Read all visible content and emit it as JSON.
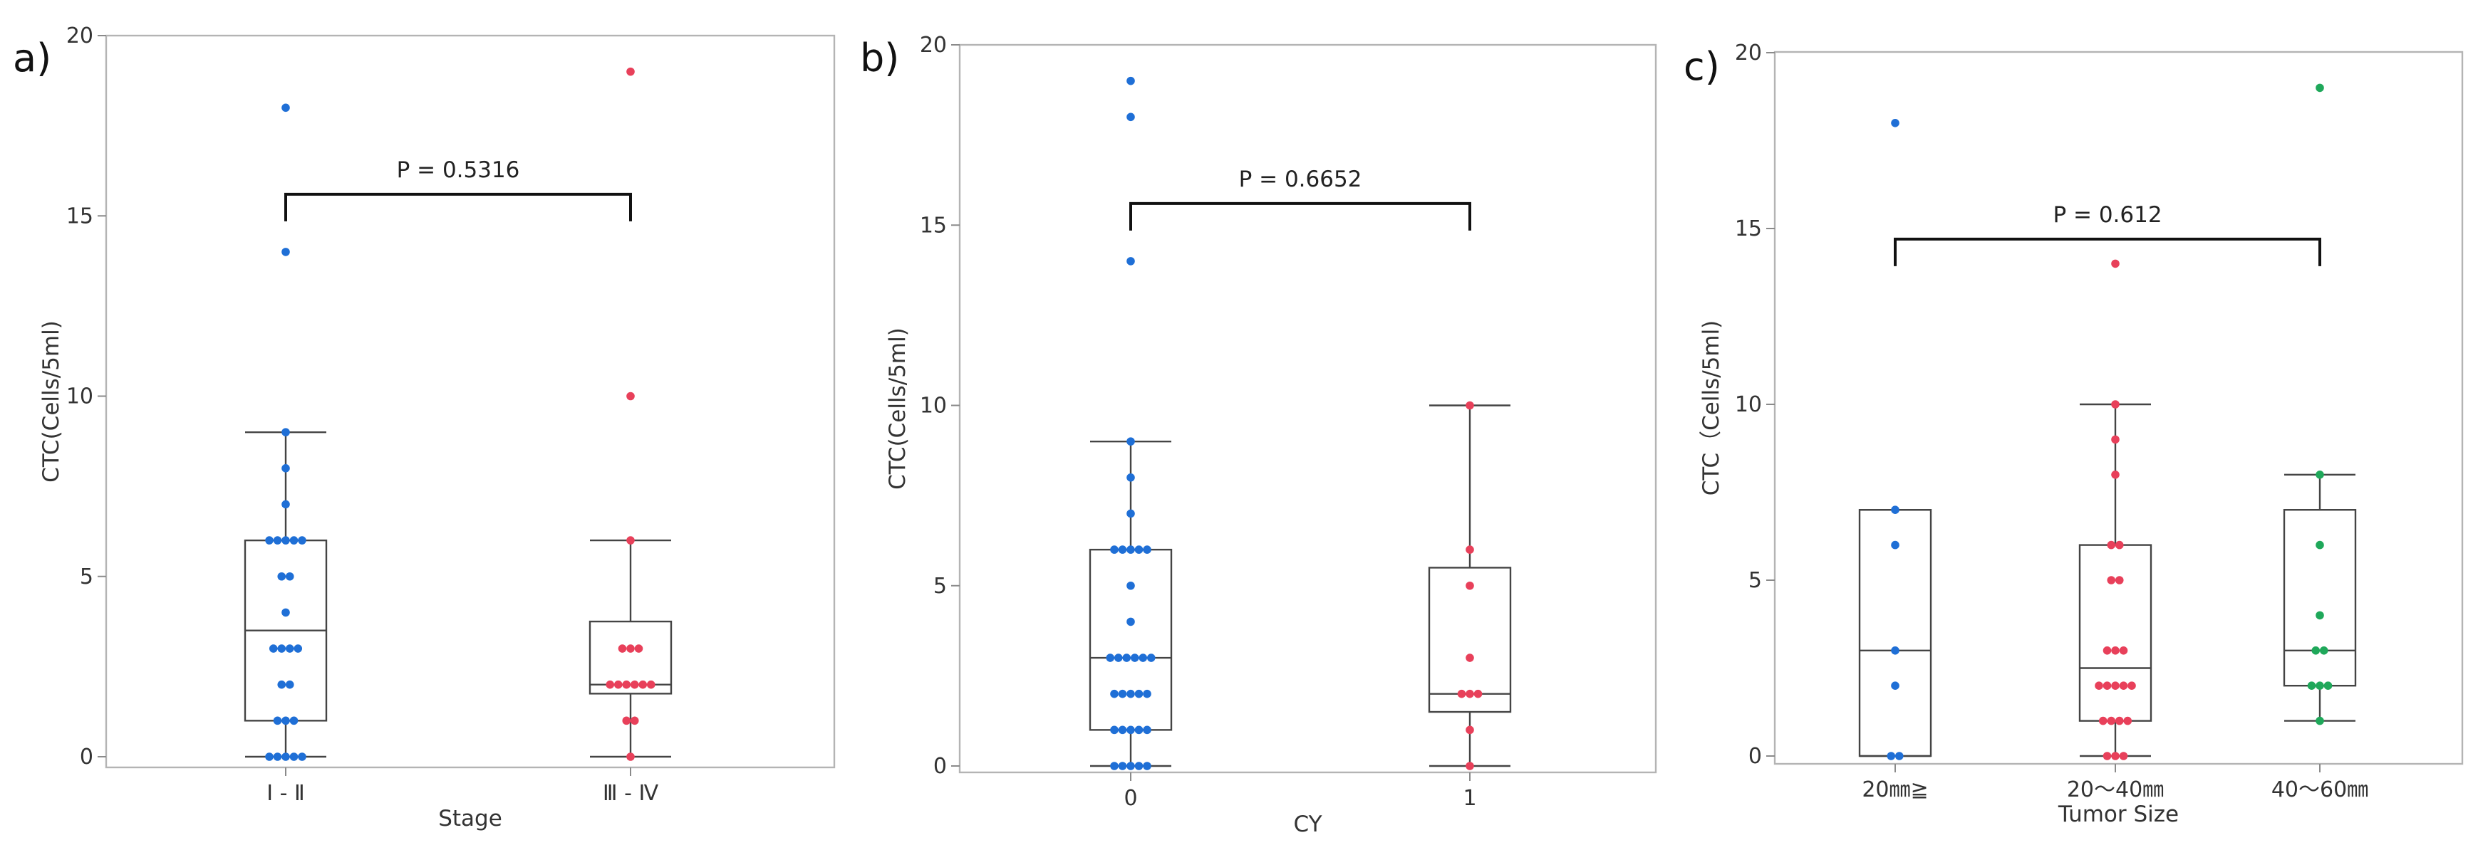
{
  "chart_data": [
    {
      "type": "box",
      "panel_label": "a)",
      "title": "",
      "xlabel": "Stage",
      "ylabel": "CTC(Cells/5ml)",
      "ylim": [
        0,
        20
      ],
      "yticks": [
        0,
        5,
        10,
        15,
        20
      ],
      "categories": [
        "Ⅰ - Ⅱ",
        "Ⅲ - Ⅳ"
      ],
      "p_value_label": "P = 0.5316",
      "bracket_between": [
        0,
        1
      ],
      "bracket_y": 15.6,
      "series": [
        {
          "name": "Ⅰ - Ⅱ",
          "color": "#1f6fd6",
          "box": {
            "whisker_low": 0,
            "q1": 1,
            "median": 3.5,
            "q3": 6,
            "whisker_high": 9
          },
          "points": [
            {
              "y": 18,
              "dx": 0
            },
            {
              "y": 14,
              "dx": 0
            },
            {
              "y": 9,
              "dx": 0
            },
            {
              "y": 8,
              "dx": 0
            },
            {
              "y": 7,
              "dx": 0
            },
            {
              "y": 6,
              "dx": -2
            },
            {
              "y": 6,
              "dx": -1
            },
            {
              "y": 6,
              "dx": 0
            },
            {
              "y": 6,
              "dx": 1
            },
            {
              "y": 6,
              "dx": 2
            },
            {
              "y": 5,
              "dx": -0.5
            },
            {
              "y": 5,
              "dx": 0.5
            },
            {
              "y": 4,
              "dx": 0
            },
            {
              "y": 3,
              "dx": -1.5
            },
            {
              "y": 3,
              "dx": -0.5
            },
            {
              "y": 3,
              "dx": 0.5
            },
            {
              "y": 3,
              "dx": 1.5
            },
            {
              "y": 2,
              "dx": -0.5
            },
            {
              "y": 2,
              "dx": 0.5
            },
            {
              "y": 1,
              "dx": -1
            },
            {
              "y": 1,
              "dx": 0
            },
            {
              "y": 1,
              "dx": 1
            },
            {
              "y": 0,
              "dx": -2
            },
            {
              "y": 0,
              "dx": -1
            },
            {
              "y": 0,
              "dx": 0
            },
            {
              "y": 0,
              "dx": 1
            },
            {
              "y": 0,
              "dx": 2
            }
          ]
        },
        {
          "name": "Ⅲ - Ⅳ",
          "color": "#e8405a",
          "box": {
            "whisker_low": 0,
            "q1": 1.75,
            "median": 2,
            "q3": 3.75,
            "whisker_high": 6
          },
          "points": [
            {
              "y": 19,
              "dx": 0
            },
            {
              "y": 10,
              "dx": 0
            },
            {
              "y": 6,
              "dx": 0
            },
            {
              "y": 3,
              "dx": -1
            },
            {
              "y": 3,
              "dx": 0
            },
            {
              "y": 3,
              "dx": 1
            },
            {
              "y": 2,
              "dx": -2.5
            },
            {
              "y": 2,
              "dx": -1.5
            },
            {
              "y": 2,
              "dx": -0.5
            },
            {
              "y": 2,
              "dx": 0.5
            },
            {
              "y": 2,
              "dx": 1.5
            },
            {
              "y": 2,
              "dx": 2.5
            },
            {
              "y": 1,
              "dx": -0.5
            },
            {
              "y": 1,
              "dx": 0.5
            },
            {
              "y": 0,
              "dx": 0
            }
          ]
        }
      ]
    },
    {
      "type": "box",
      "panel_label": "b)",
      "title": "",
      "xlabel": "CY",
      "ylabel": "CTC(Cells/5ml)",
      "ylim": [
        0,
        20
      ],
      "yticks": [
        0,
        5,
        10,
        15,
        20
      ],
      "categories": [
        "0",
        "1"
      ],
      "p_value_label": "P = 0.6652",
      "bracket_between": [
        0,
        1
      ],
      "bracket_y": 15.6,
      "series": [
        {
          "name": "0",
          "color": "#1f6fd6",
          "box": {
            "whisker_low": 0,
            "q1": 1,
            "median": 3,
            "q3": 6,
            "whisker_high": 9
          },
          "points": [
            {
              "y": 19,
              "dx": 0
            },
            {
              "y": 18,
              "dx": 0
            },
            {
              "y": 14,
              "dx": 0
            },
            {
              "y": 9,
              "dx": 0
            },
            {
              "y": 8,
              "dx": 0
            },
            {
              "y": 7,
              "dx": 0
            },
            {
              "y": 6,
              "dx": -2
            },
            {
              "y": 6,
              "dx": -1
            },
            {
              "y": 6,
              "dx": 0
            },
            {
              "y": 6,
              "dx": 1
            },
            {
              "y": 6,
              "dx": 2
            },
            {
              "y": 5,
              "dx": 0
            },
            {
              "y": 4,
              "dx": 0
            },
            {
              "y": 3,
              "dx": -2.5
            },
            {
              "y": 3,
              "dx": -1.5
            },
            {
              "y": 3,
              "dx": -0.5
            },
            {
              "y": 3,
              "dx": 0.5
            },
            {
              "y": 3,
              "dx": 1.5
            },
            {
              "y": 3,
              "dx": 2.5
            },
            {
              "y": 2,
              "dx": -2
            },
            {
              "y": 2,
              "dx": -1
            },
            {
              "y": 2,
              "dx": 0
            },
            {
              "y": 2,
              "dx": 1
            },
            {
              "y": 2,
              "dx": 2
            },
            {
              "y": 1,
              "dx": -2
            },
            {
              "y": 1,
              "dx": -1
            },
            {
              "y": 1,
              "dx": 0
            },
            {
              "y": 1,
              "dx": 1
            },
            {
              "y": 1,
              "dx": 2
            },
            {
              "y": 0,
              "dx": -2
            },
            {
              "y": 0,
              "dx": -1
            },
            {
              "y": 0,
              "dx": 0
            },
            {
              "y": 0,
              "dx": 1
            },
            {
              "y": 0,
              "dx": 2
            }
          ]
        },
        {
          "name": "1",
          "color": "#e8405a",
          "box": {
            "whisker_low": 0,
            "q1": 1.5,
            "median": 2,
            "q3": 5.5,
            "whisker_high": 10
          },
          "points": [
            {
              "y": 10,
              "dx": 0
            },
            {
              "y": 6,
              "dx": 0
            },
            {
              "y": 5,
              "dx": 0
            },
            {
              "y": 3,
              "dx": 0
            },
            {
              "y": 2,
              "dx": -1
            },
            {
              "y": 2,
              "dx": 0
            },
            {
              "y": 2,
              "dx": 1
            },
            {
              "y": 1,
              "dx": 0
            },
            {
              "y": 0,
              "dx": 0
            }
          ]
        }
      ]
    },
    {
      "type": "box",
      "panel_label": "c)",
      "title": "",
      "xlabel": "Tumor Size",
      "ylabel": "CTC（Cells/5ml)",
      "ylim": [
        0,
        20
      ],
      "yticks": [
        0,
        5,
        10,
        15,
        20
      ],
      "categories": [
        "20㎜≧",
        "20～40㎜",
        "40～60㎜"
      ],
      "p_value_label": "P = 0.612",
      "bracket_between": [
        0,
        2
      ],
      "bracket_y": 14.7,
      "series": [
        {
          "name": "20㎜≧",
          "color": "#1f6fd6",
          "box": {
            "whisker_low": 0,
            "q1": 0,
            "median": 3,
            "q3": 7,
            "whisker_high": 7
          },
          "points": [
            {
              "y": 18,
              "dx": 0
            },
            {
              "y": 7,
              "dx": 0
            },
            {
              "y": 6,
              "dx": 0
            },
            {
              "y": 3,
              "dx": 0
            },
            {
              "y": 2,
              "dx": 0
            },
            {
              "y": 0,
              "dx": -0.5
            },
            {
              "y": 0,
              "dx": 0.5
            }
          ]
        },
        {
          "name": "20～40㎜",
          "color": "#e8405a",
          "box": {
            "whisker_low": 0,
            "q1": 1,
            "median": 2.5,
            "q3": 6,
            "whisker_high": 10
          },
          "points": [
            {
              "y": 14,
              "dx": 0
            },
            {
              "y": 10,
              "dx": 0
            },
            {
              "y": 9,
              "dx": 0
            },
            {
              "y": 8,
              "dx": 0
            },
            {
              "y": 6,
              "dx": -0.5
            },
            {
              "y": 6,
              "dx": 0.5
            },
            {
              "y": 5,
              "dx": -0.5
            },
            {
              "y": 5,
              "dx": 0.5
            },
            {
              "y": 3,
              "dx": -1
            },
            {
              "y": 3,
              "dx": 0
            },
            {
              "y": 3,
              "dx": 1
            },
            {
              "y": 2,
              "dx": -2
            },
            {
              "y": 2,
              "dx": -1
            },
            {
              "y": 2,
              "dx": 0
            },
            {
              "y": 2,
              "dx": 1
            },
            {
              "y": 2,
              "dx": 2
            },
            {
              "y": 1,
              "dx": -1.5
            },
            {
              "y": 1,
              "dx": -0.5
            },
            {
              "y": 1,
              "dx": 0.5
            },
            {
              "y": 1,
              "dx": 1.5
            },
            {
              "y": 0,
              "dx": -1
            },
            {
              "y": 0,
              "dx": 0
            },
            {
              "y": 0,
              "dx": 1
            }
          ]
        },
        {
          "name": "40～60㎜",
          "color": "#1fa85a",
          "box": {
            "whisker_low": 1,
            "q1": 2,
            "median": 3,
            "q3": 7,
            "whisker_high": 8
          },
          "points": [
            {
              "y": 19,
              "dx": 0
            },
            {
              "y": 8,
              "dx": 0
            },
            {
              "y": 6,
              "dx": 0
            },
            {
              "y": 4,
              "dx": 0
            },
            {
              "y": 3,
              "dx": -0.5
            },
            {
              "y": 3,
              "dx": 0.5
            },
            {
              "y": 2,
              "dx": -1
            },
            {
              "y": 2,
              "dx": 0
            },
            {
              "y": 2,
              "dx": 1
            },
            {
              "y": 1,
              "dx": 0
            }
          ]
        }
      ]
    }
  ]
}
